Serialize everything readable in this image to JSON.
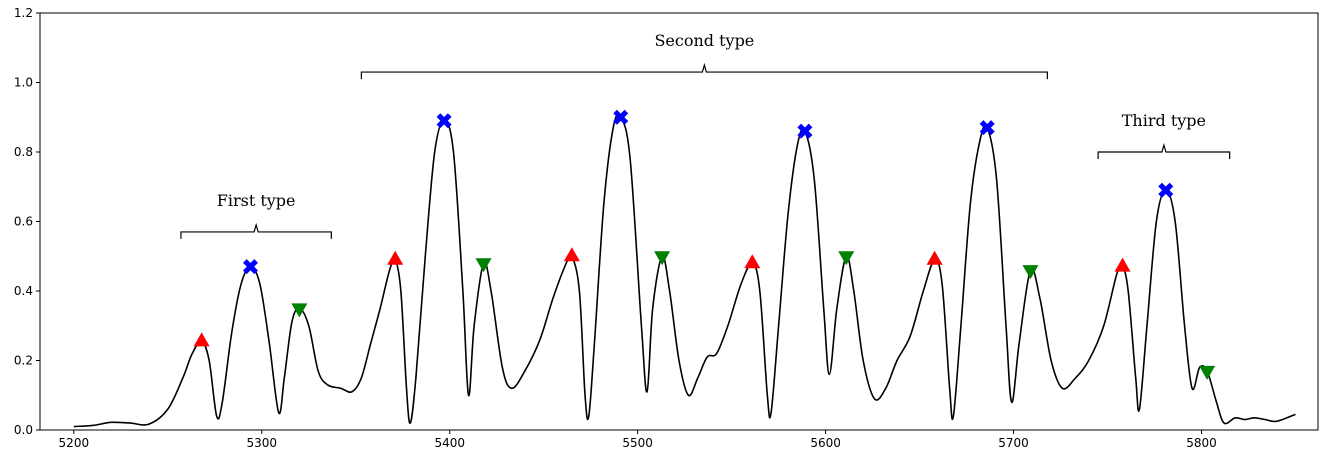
{
  "chart_data": {
    "type": "line",
    "title": "",
    "xlabel": "",
    "ylabel": "",
    "xlim": [
      5182,
      5862
    ],
    "ylim": [
      0,
      1.2
    ],
    "x_ticks": [
      5200,
      5300,
      5400,
      5500,
      5600,
      5700,
      5800
    ],
    "y_ticks": [
      0.0,
      0.2,
      0.4,
      0.6,
      0.8,
      1.0,
      1.2
    ],
    "grid": false,
    "series": [
      {
        "line_color": "#000000",
        "points": [
          [
            5200,
            0.01
          ],
          [
            5210,
            0.013
          ],
          [
            5220,
            0.022
          ],
          [
            5230,
            0.02
          ],
          [
            5240,
            0.017
          ],
          [
            5250,
            0.06
          ],
          [
            5258,
            0.15
          ],
          [
            5263,
            0.22
          ],
          [
            5268,
            0.255
          ],
          [
            5272,
            0.2
          ],
          [
            5276,
            0.04
          ],
          [
            5279,
            0.08
          ],
          [
            5284,
            0.28
          ],
          [
            5289,
            0.42
          ],
          [
            5294,
            0.47
          ],
          [
            5299,
            0.42
          ],
          [
            5304,
            0.25
          ],
          [
            5309,
            0.05
          ],
          [
            5312,
            0.15
          ],
          [
            5316,
            0.31
          ],
          [
            5320,
            0.35
          ],
          [
            5325,
            0.3
          ],
          [
            5330,
            0.17
          ],
          [
            5335,
            0.13
          ],
          [
            5342,
            0.12
          ],
          [
            5348,
            0.11
          ],
          [
            5353,
            0.15
          ],
          [
            5358,
            0.25
          ],
          [
            5363,
            0.35
          ],
          [
            5368,
            0.46
          ],
          [
            5371,
            0.49
          ],
          [
            5374,
            0.4
          ],
          [
            5377,
            0.12
          ],
          [
            5379,
            0.02
          ],
          [
            5382,
            0.15
          ],
          [
            5387,
            0.5
          ],
          [
            5392,
            0.8
          ],
          [
            5397,
            0.89
          ],
          [
            5402,
            0.8
          ],
          [
            5407,
            0.4
          ],
          [
            5410,
            0.1
          ],
          [
            5413,
            0.3
          ],
          [
            5418,
            0.48
          ],
          [
            5422,
            0.4
          ],
          [
            5428,
            0.18
          ],
          [
            5433,
            0.12
          ],
          [
            5440,
            0.17
          ],
          [
            5448,
            0.26
          ],
          [
            5455,
            0.38
          ],
          [
            5462,
            0.48
          ],
          [
            5465,
            0.5
          ],
          [
            5469,
            0.4
          ],
          [
            5472,
            0.1
          ],
          [
            5474,
            0.04
          ],
          [
            5477,
            0.25
          ],
          [
            5482,
            0.65
          ],
          [
            5487,
            0.87
          ],
          [
            5491,
            0.9
          ],
          [
            5496,
            0.78
          ],
          [
            5502,
            0.3
          ],
          [
            5505,
            0.11
          ],
          [
            5508,
            0.35
          ],
          [
            5513,
            0.5
          ],
          [
            5517,
            0.4
          ],
          [
            5522,
            0.2
          ],
          [
            5527,
            0.1
          ],
          [
            5532,
            0.15
          ],
          [
            5537,
            0.21
          ],
          [
            5542,
            0.22
          ],
          [
            5548,
            0.3
          ],
          [
            5555,
            0.42
          ],
          [
            5561,
            0.48
          ],
          [
            5565,
            0.4
          ],
          [
            5569,
            0.1
          ],
          [
            5571,
            0.05
          ],
          [
            5575,
            0.3
          ],
          [
            5580,
            0.62
          ],
          [
            5585,
            0.82
          ],
          [
            5589,
            0.86
          ],
          [
            5594,
            0.72
          ],
          [
            5599,
            0.35
          ],
          [
            5602,
            0.16
          ],
          [
            5606,
            0.35
          ],
          [
            5611,
            0.5
          ],
          [
            5615,
            0.4
          ],
          [
            5620,
            0.2
          ],
          [
            5626,
            0.09
          ],
          [
            5632,
            0.12
          ],
          [
            5638,
            0.2
          ],
          [
            5645,
            0.27
          ],
          [
            5652,
            0.4
          ],
          [
            5658,
            0.49
          ],
          [
            5662,
            0.42
          ],
          [
            5666,
            0.12
          ],
          [
            5668,
            0.04
          ],
          [
            5672,
            0.3
          ],
          [
            5677,
            0.65
          ],
          [
            5682,
            0.83
          ],
          [
            5686,
            0.87
          ],
          [
            5691,
            0.72
          ],
          [
            5696,
            0.3
          ],
          [
            5699,
            0.08
          ],
          [
            5703,
            0.25
          ],
          [
            5709,
            0.46
          ],
          [
            5714,
            0.38
          ],
          [
            5720,
            0.2
          ],
          [
            5726,
            0.12
          ],
          [
            5733,
            0.15
          ],
          [
            5740,
            0.2
          ],
          [
            5748,
            0.3
          ],
          [
            5755,
            0.45
          ],
          [
            5758,
            0.47
          ],
          [
            5761,
            0.4
          ],
          [
            5765,
            0.15
          ],
          [
            5767,
            0.06
          ],
          [
            5771,
            0.3
          ],
          [
            5776,
            0.6
          ],
          [
            5781,
            0.69
          ],
          [
            5786,
            0.6
          ],
          [
            5791,
            0.3
          ],
          [
            5795,
            0.12
          ],
          [
            5799,
            0.18
          ],
          [
            5803,
            0.17
          ],
          [
            5808,
            0.08
          ],
          [
            5812,
            0.02
          ],
          [
            5818,
            0.035
          ],
          [
            5823,
            0.03
          ],
          [
            5828,
            0.035
          ],
          [
            5834,
            0.03
          ],
          [
            5840,
            0.025
          ],
          [
            5850,
            0.045
          ]
        ]
      }
    ],
    "markers": [
      {
        "type": "triangle-up",
        "color": "#ff0000",
        "points": [
          [
            5268,
            0.255
          ],
          [
            5371,
            0.49
          ],
          [
            5465,
            0.5
          ],
          [
            5561,
            0.48
          ],
          [
            5658,
            0.49
          ],
          [
            5758,
            0.47
          ]
        ]
      },
      {
        "type": "x-filled",
        "color": "#0000ff",
        "points": [
          [
            5294,
            0.47
          ],
          [
            5397,
            0.89
          ],
          [
            5491,
            0.9
          ],
          [
            5589,
            0.86
          ],
          [
            5686,
            0.87
          ],
          [
            5781,
            0.69
          ]
        ]
      },
      {
        "type": "triangle-down",
        "color": "#008000",
        "points": [
          [
            5320,
            0.35
          ],
          [
            5418,
            0.48
          ],
          [
            5513,
            0.5
          ],
          [
            5611,
            0.5
          ],
          [
            5709,
            0.46
          ],
          [
            5803,
            0.17
          ]
        ]
      }
    ],
    "annotations": [
      {
        "text": "First type",
        "x_start": 5257,
        "x_end": 5337,
        "y": 0.57
      },
      {
        "text": "Second type",
        "x_start": 5353,
        "x_end": 5718,
        "y": 1.03
      },
      {
        "text": "Third type",
        "x_start": 5745,
        "x_end": 5815,
        "y": 0.8
      }
    ]
  }
}
